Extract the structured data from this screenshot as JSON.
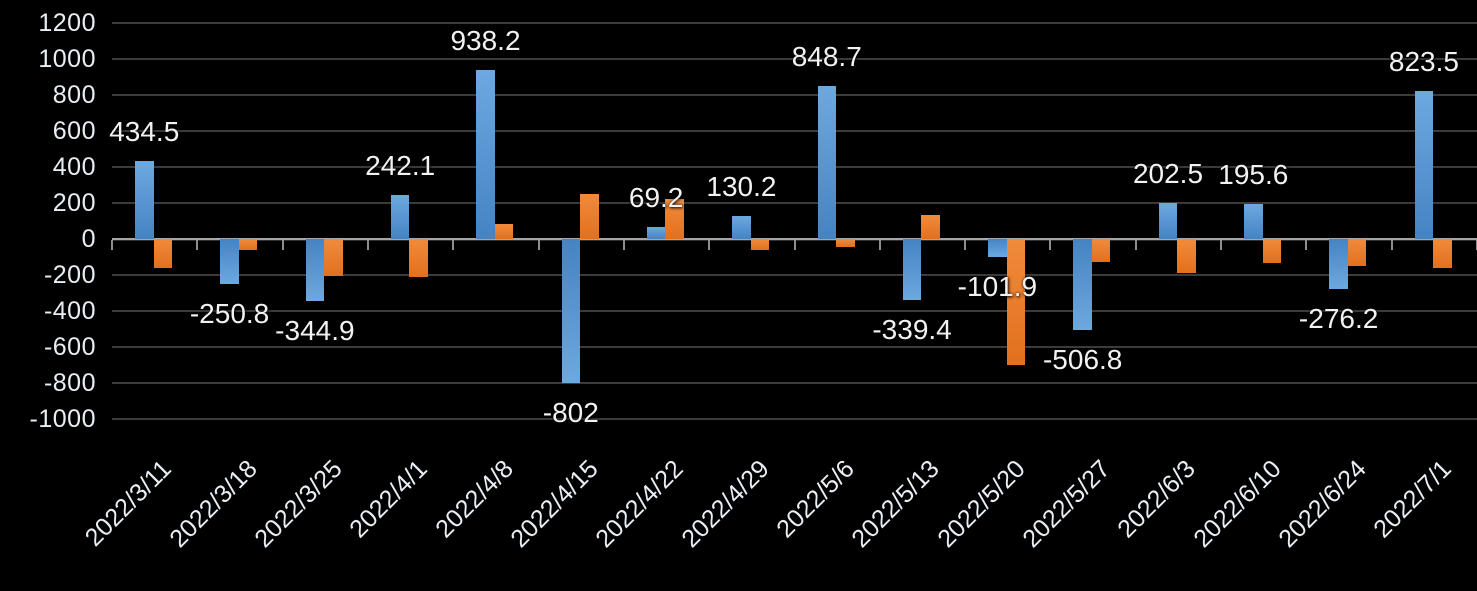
{
  "chart_data": {
    "type": "bar",
    "title": "",
    "xlabel": "",
    "ylabel": "",
    "categories": [
      "2022/3/11",
      "2022/3/18",
      "2022/3/25",
      "2022/4/1",
      "2022/4/8",
      "2022/4/15",
      "2022/4/22",
      "2022/4/29",
      "2022/5/6",
      "2022/5/13",
      "2022/5/20",
      "2022/5/27",
      "2022/6/3",
      "2022/6/10",
      "2022/6/24",
      "2022/7/1"
    ],
    "series": [
      {
        "name": "blue-series",
        "values": [
          434.5,
          -250.8,
          -344.9,
          242.1,
          938.2,
          -802,
          69.2,
          130.2,
          848.7,
          -339.4,
          -101.9,
          -506.8,
          202.5,
          195.6,
          -276.2,
          823.5
        ],
        "data_labels": [
          "434.5",
          "-250.8",
          "-344.9",
          "242.1",
          "938.2",
          "-802",
          "69.2",
          "130.2",
          "848.7",
          "-339.4",
          "-101.9",
          "-506.8",
          "202.5",
          "195.6",
          "-276.2",
          "823.5"
        ]
      },
      {
        "name": "orange-series",
        "values": [
          -160,
          -60,
          -205,
          -210,
          85,
          250,
          220,
          -60,
          -45,
          135,
          -700,
          -125,
          -190,
          -135,
          -150,
          -160
        ],
        "data_labels": []
      }
    ],
    "y_ticks": [
      "1200",
      "1000",
      "800",
      "600",
      "400",
      "200",
      "0",
      "-200",
      "-400",
      "-600",
      "-800",
      "-1000"
    ],
    "y_tick_values": [
      1200,
      1000,
      800,
      600,
      400,
      200,
      0,
      -200,
      -400,
      -600,
      -800,
      -1000
    ],
    "ylim": [
      -1000,
      1200
    ],
    "grid": true,
    "legend_position": "none",
    "background_color": "#000000",
    "colors": {
      "blue_light": "#6da8e0",
      "blue_dark": "#4583c2",
      "orange_light": "#f08b3c",
      "orange_dark": "#e2701e",
      "gridline": "#3b3b3b",
      "axis_line": "#a6a6a6",
      "text": "#e9eef4",
      "data_label_text": "#f2f2f2"
    }
  }
}
